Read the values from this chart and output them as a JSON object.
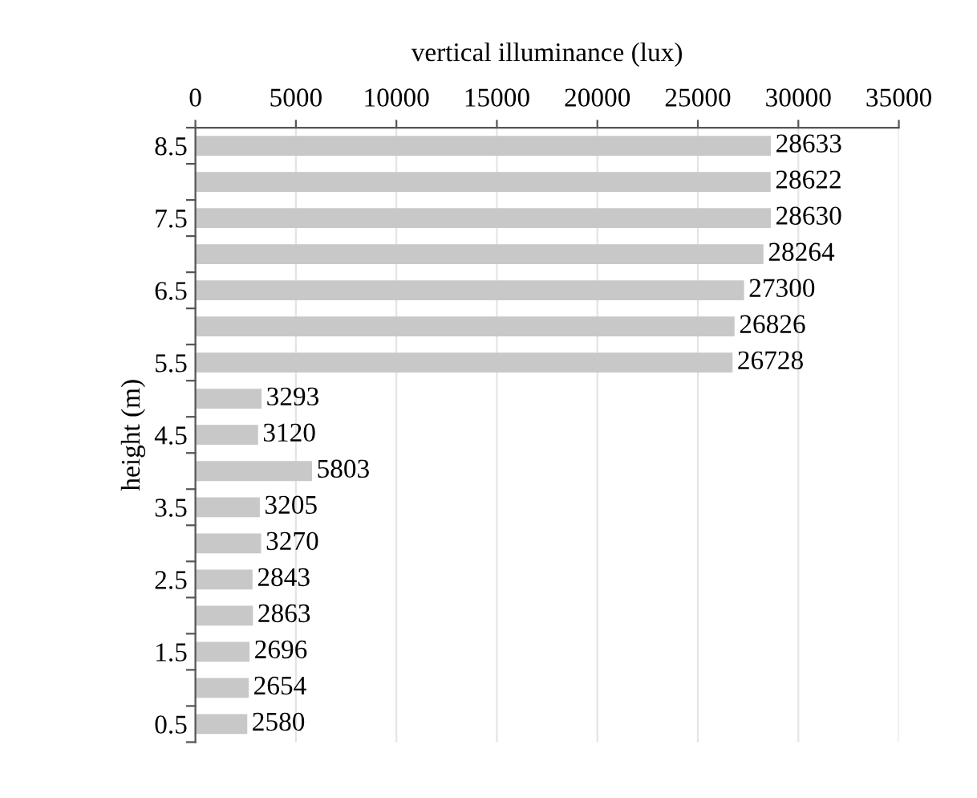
{
  "chart_data": {
    "type": "bar",
    "orientation": "horizontal",
    "xlabel": "vertical illuminance (lux)",
    "ylabel": "height (m)",
    "categories": [
      "8.5",
      null,
      "7.5",
      null,
      "6.5",
      null,
      "5.5",
      null,
      "4.5",
      null,
      "3.5",
      null,
      "2.5",
      null,
      "1.5",
      null,
      "0.5"
    ],
    "values": [
      28633,
      28622,
      28630,
      28264,
      27300,
      26826,
      26728,
      3293,
      3120,
      5803,
      3205,
      3270,
      2843,
      2863,
      2696,
      2654,
      2580
    ],
    "color": "#c8c8c8",
    "xlim": [
      0,
      35000
    ],
    "xticks": [
      0,
      5000,
      10000,
      15000,
      20000,
      25000,
      30000,
      35000
    ],
    "grid": "x",
    "data_labels": true
  }
}
